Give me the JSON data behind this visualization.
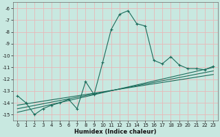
{
  "xlabel": "Humidex (Indice chaleur)",
  "bg_color": "#c8e8e0",
  "grid_color": "#e8b8b8",
  "line_color": "#1a6b5a",
  "xlim": [
    -0.5,
    23.5
  ],
  "ylim": [
    -15.5,
    -5.5
  ],
  "yticks": [
    -15,
    -14,
    -13,
    -12,
    -11,
    -10,
    -9,
    -8,
    -7,
    -6
  ],
  "xticks": [
    0,
    1,
    2,
    3,
    4,
    5,
    6,
    7,
    8,
    9,
    10,
    11,
    12,
    13,
    14,
    15,
    16,
    17,
    18,
    19,
    20,
    21,
    22,
    23
  ],
  "line1_x": [
    0,
    1,
    2,
    3,
    4,
    5,
    6,
    7,
    8,
    9,
    10,
    11,
    12,
    13,
    14,
    15,
    16,
    17,
    18,
    19,
    20,
    21,
    22,
    23
  ],
  "line1_y": [
    -13.4,
    -14.0,
    -15.0,
    -14.5,
    -14.2,
    -14.0,
    -13.7,
    -14.5,
    -12.2,
    -13.3,
    -10.6,
    -7.8,
    -6.5,
    -6.2,
    -7.3,
    -7.5,
    -10.4,
    -10.7,
    -10.1,
    -10.8,
    -11.1,
    -11.1,
    -11.2,
    -10.9
  ],
  "line2_x": [
    0,
    23
  ],
  "line2_y": [
    -14.8,
    -11.0
  ],
  "line3_x": [
    0,
    23
  ],
  "line3_y": [
    -14.5,
    -11.3
  ],
  "line4_x": [
    0,
    23
  ],
  "line4_y": [
    -14.2,
    -11.6
  ]
}
